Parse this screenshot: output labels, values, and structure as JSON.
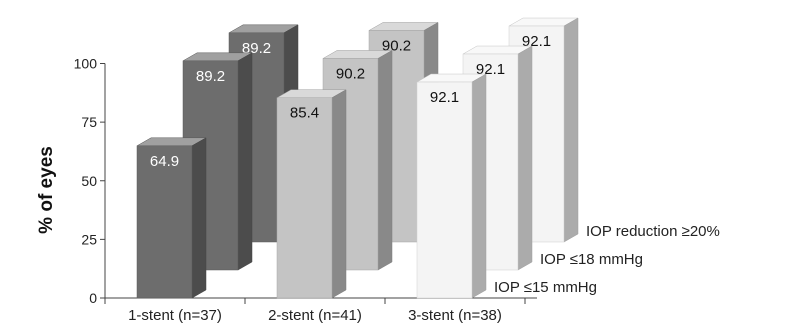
{
  "chart_data": {
    "type": "bar",
    "title": "",
    "ylabel": "% of eyes",
    "xlabel": "",
    "ylim": [
      0,
      100
    ],
    "yticks": [
      0,
      25,
      50,
      75,
      100
    ],
    "categories": [
      "1-stent (n=37)",
      "2-stent (n=41)",
      "3-stent (n=38)"
    ],
    "series": [
      {
        "name": "IOP ≤15 mmHg",
        "values": [
          64.9,
          85.4,
          92.1
        ],
        "color": "#6d6d6d",
        "label_color": "#ffffff"
      },
      {
        "name": "IOP ≤18 mmHg",
        "values": [
          89.2,
          90.2,
          92.1
        ],
        "color": "#6d6d6d",
        "label_color": "#ffffff"
      },
      {
        "name": "IOP reduction ≥20%",
        "values": [
          89.2,
          90.2,
          92.1
        ],
        "color": "#6d6d6d",
        "label_color": "#ffffff"
      }
    ],
    "category_colors": [
      "#6d6d6d",
      "#c4c4c4",
      "#f4f4f4"
    ],
    "category_label_colors": [
      "#ffffff",
      "#111111",
      "#111111"
    ],
    "grid": false,
    "legend": "depth-labels-right"
  }
}
